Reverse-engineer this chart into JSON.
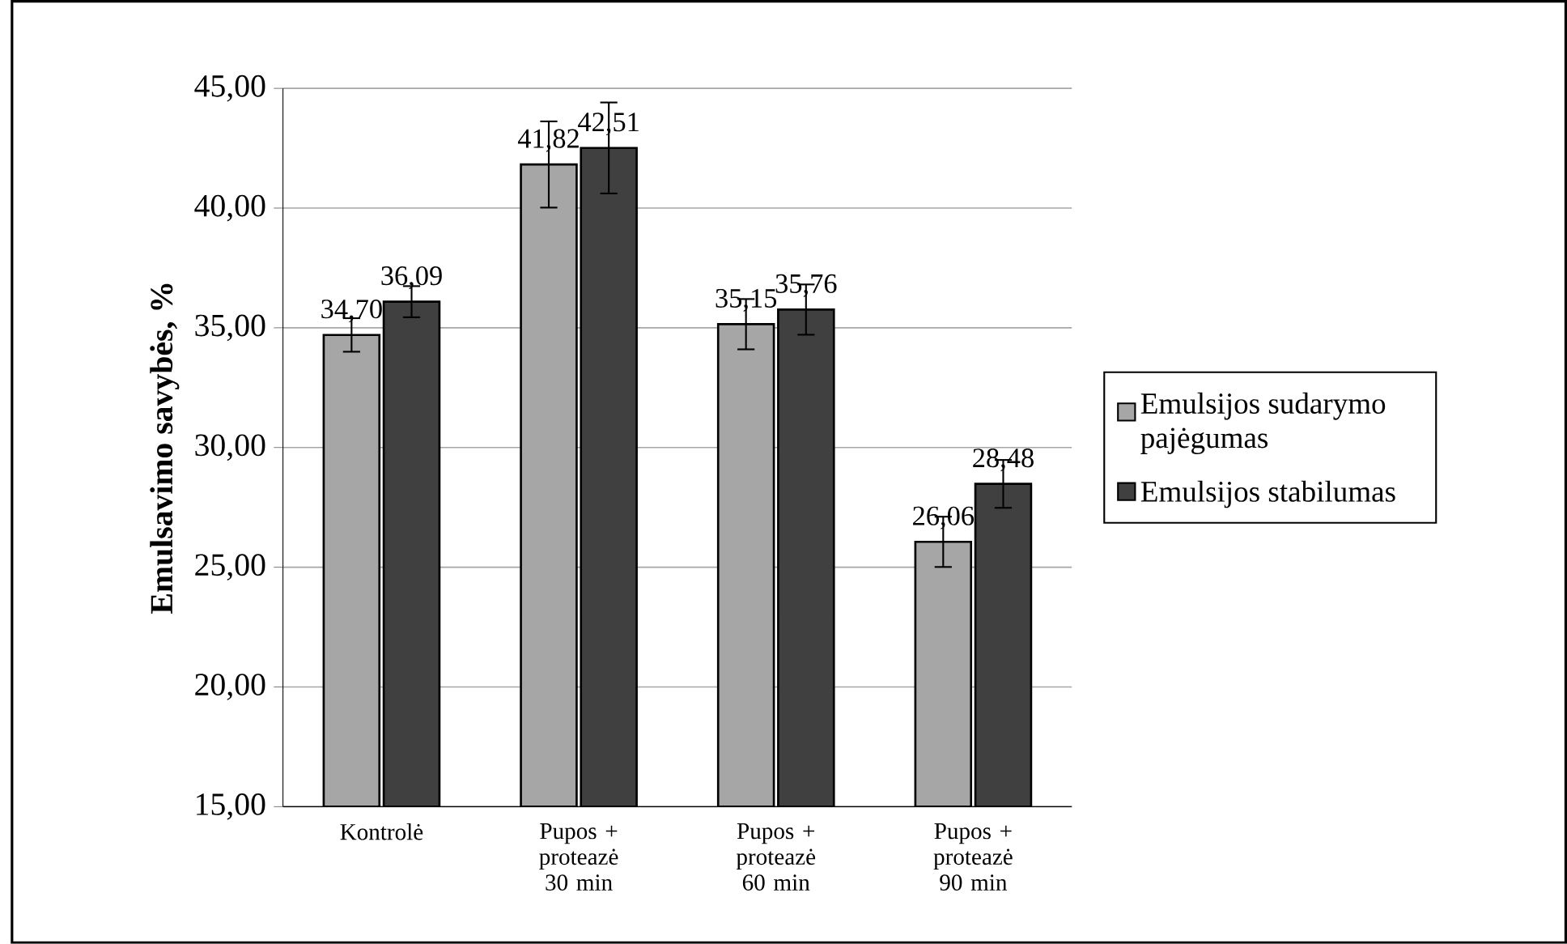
{
  "chart_data": {
    "type": "bar",
    "ylabel": "Emulsavimo savybės, %",
    "categories": [
      "Kontrolė",
      "Pupos + proteazė 30 min",
      "Pupos + proteazė 60 min",
      "Pupos + proteazė 90 min"
    ],
    "series": [
      {
        "name": "Emulsijos sudarymo pajėgumas",
        "color": "#a6a6a6",
        "values": [
          34.7,
          41.82,
          35.15,
          26.06
        ],
        "value_labels": [
          "34,70",
          "41,82",
          "35,15",
          "26,06"
        ],
        "errors": [
          0.7,
          1.8,
          1.05,
          1.05
        ]
      },
      {
        "name": "Emulsijos stabilumas",
        "color": "#404040",
        "values": [
          36.09,
          42.51,
          35.76,
          28.48
        ],
        "value_labels": [
          "36,09",
          "42,51",
          "35,76",
          "28,48"
        ],
        "errors": [
          0.65,
          1.9,
          1.05,
          1.0
        ]
      }
    ],
    "ylim": [
      15,
      45
    ],
    "yticks": [
      {
        "value": 15,
        "label": "15,00"
      },
      {
        "value": 20,
        "label": "20,00"
      },
      {
        "value": 25,
        "label": "25,00"
      },
      {
        "value": 30,
        "label": "30,00"
      },
      {
        "value": 35,
        "label": "35,00"
      },
      {
        "value": 40,
        "label": "40,00"
      },
      {
        "value": 45,
        "label": "45,00"
      }
    ],
    "grid": "y",
    "legend": "right"
  }
}
